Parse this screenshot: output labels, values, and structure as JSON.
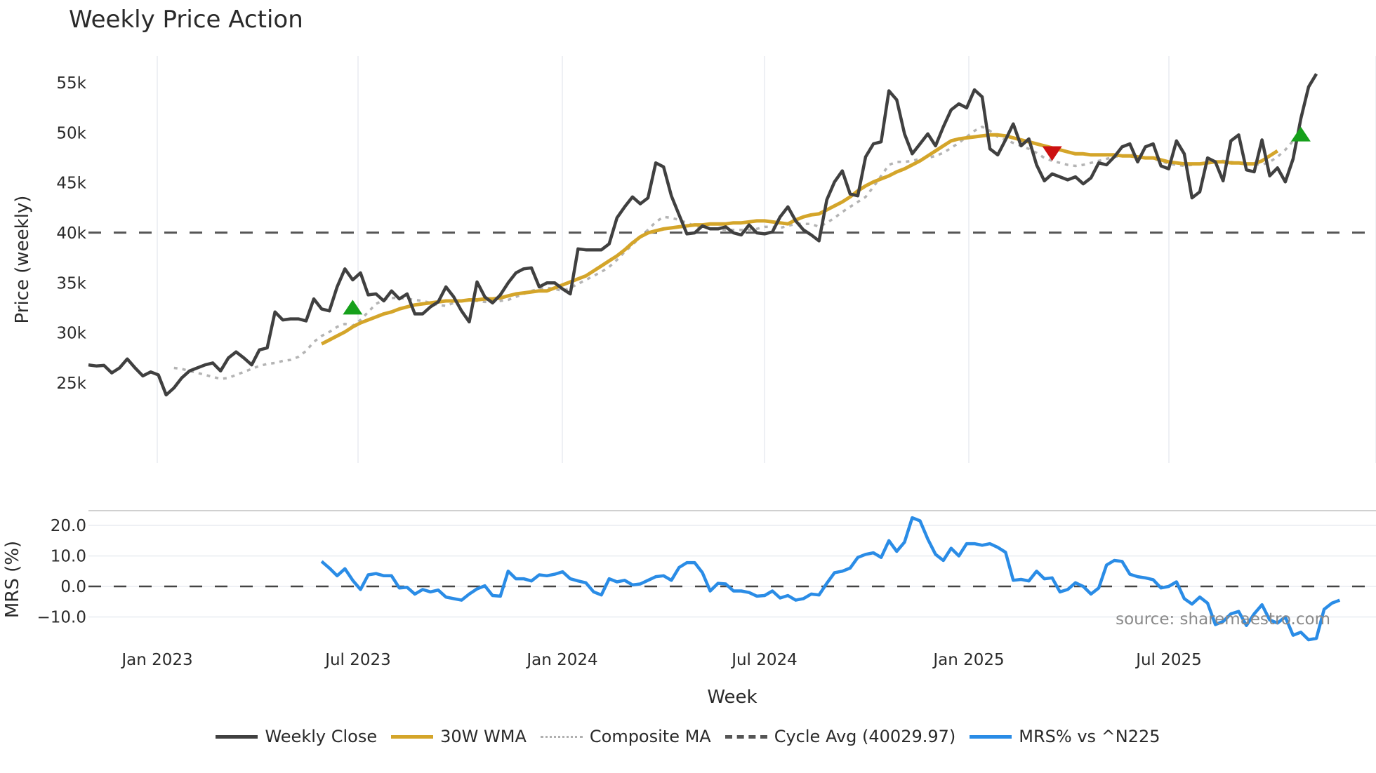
{
  "title": "Weekly Price Action",
  "source_text": "source: sharemaestro.com",
  "legend": [
    {
      "label": "Weekly Close",
      "color": "#404040",
      "style": "solid"
    },
    {
      "label": "30W WMA",
      "color": "#d4a52a",
      "style": "solid"
    },
    {
      "label": "Composite MA",
      "color": "#b0b0b0",
      "style": "dotted"
    },
    {
      "label": "Cycle Avg (40029.97)",
      "color": "#555555",
      "style": "dashed"
    },
    {
      "label": "MRS% vs ^N225",
      "color": "#2a8ce6",
      "style": "solid"
    }
  ],
  "chart_data": [
    {
      "type": "line",
      "title": "Weekly Price Action",
      "xlabel": "Week",
      "ylabel": "Price (weekly)",
      "ylim": [
        22000,
        58500
      ],
      "y_ticks": [
        "25k",
        "30k",
        "35k",
        "40k",
        "45k",
        "50k",
        "55k"
      ],
      "x_ticks": [
        "Jan 2023",
        "Jul 2023",
        "Jan 2024",
        "Jul 2024",
        "Jan 2025",
        "Jul 2025"
      ],
      "grid": true,
      "start_week": "2022-11-07",
      "hline": {
        "label": "Cycle Avg (40029.97)",
        "value": 40029.97
      },
      "series": [
        {
          "name": "Weekly Close",
          "values": [
            26800,
            26700,
            26750,
            26000,
            26500,
            27400,
            26500,
            25700,
            26100,
            25800,
            23800,
            24500,
            25500,
            26200,
            26500,
            26800,
            27000,
            26200,
            27500,
            28100,
            27500,
            26800,
            28300,
            28500,
            32100,
            31300,
            31400,
            31400,
            31200,
            33400,
            32400,
            32200,
            34600,
            36400,
            35300,
            36000,
            33800,
            33900,
            33200,
            34200,
            33400,
            33900,
            31900,
            31900,
            32600,
            33100,
            34600,
            33600,
            32200,
            31100,
            35100,
            33600,
            33000,
            33800,
            35000,
            36000,
            36400,
            36500,
            34600,
            35000,
            35000,
            34400,
            33900,
            38400,
            38300,
            38300,
            38300,
            38900,
            41500,
            42600,
            43600,
            42900,
            43500,
            47000,
            46600,
            43700,
            41800,
            39900,
            40000,
            40700,
            40400,
            40400,
            40600,
            40000,
            39800,
            40800,
            40000,
            39900,
            40100,
            41600,
            42600,
            41200,
            40300,
            39800,
            39200,
            43300,
            45100,
            46200,
            43900,
            43700,
            47600,
            48900,
            49100,
            54200,
            53300,
            49900,
            47900,
            48900,
            49900,
            48700,
            50600,
            52300,
            52900,
            52500,
            54300,
            53600,
            48400,
            47800,
            49300,
            50900,
            48700,
            49400,
            46800,
            45200,
            45900,
            45600,
            45300,
            45600,
            44900,
            45500,
            47000,
            46800,
            47600,
            48600,
            48900,
            47100,
            48600,
            48900,
            46700,
            46400,
            49200,
            47900,
            43500,
            44100,
            47500,
            47100,
            45200,
            49200,
            49800,
            46300,
            46100,
            49300,
            45700,
            46500,
            45100,
            47400,
            51400,
            54600,
            55900
          ]
        },
        {
          "name": "30W WMA",
          "start_index": 30,
          "values": [
            28900,
            29300,
            29700,
            30100,
            30600,
            31000,
            31300,
            31600,
            31900,
            32100,
            32400,
            32600,
            32800,
            32900,
            33000,
            33100,
            33200,
            33200,
            33200,
            33300,
            33300,
            33400,
            33400,
            33500,
            33700,
            33900,
            34000,
            34100,
            34200,
            34200,
            34500,
            34800,
            35100,
            35400,
            35700,
            36200,
            36700,
            37200,
            37700,
            38300,
            39000,
            39600,
            40000,
            40200,
            40400,
            40500,
            40600,
            40700,
            40800,
            40800,
            40900,
            40900,
            40900,
            41000,
            41000,
            41100,
            41200,
            41200,
            41100,
            41000,
            40900,
            41300,
            41600,
            41800,
            41900,
            42300,
            42700,
            43100,
            43600,
            44200,
            44700,
            45100,
            45400,
            45700,
            46100,
            46400,
            46800,
            47200,
            47700,
            48200,
            48700,
            49200,
            49400,
            49500,
            49600,
            49700,
            49800,
            49800,
            49700,
            49500,
            49300,
            49100,
            48900,
            48700,
            48500,
            48300,
            48100,
            47900,
            47900,
            47800,
            47800,
            47800,
            47800,
            47700,
            47700,
            47600,
            47500,
            47500,
            47300,
            47100,
            47000,
            46900,
            46900,
            46900,
            47000,
            47100,
            47100,
            47000,
            47000,
            46900,
            46900,
            47200,
            47700,
            48200
          ]
        },
        {
          "name": "Composite MA",
          "start_index": 11,
          "values": [
            26500,
            26400,
            26200,
            26000,
            25800,
            25600,
            25400,
            25500,
            25800,
            26100,
            26400,
            26700,
            26900,
            27000,
            27200,
            27300,
            27600,
            28200,
            29100,
            29700,
            30100,
            30600,
            30900,
            30700,
            31300,
            32100,
            32900,
            33300,
            33500,
            33500,
            33400,
            33300,
            33200,
            33000,
            32800,
            32700,
            33000,
            33200,
            33300,
            33200,
            33100,
            33100,
            33200,
            33300,
            33600,
            33900,
            34200,
            34400,
            34500,
            34400,
            34200,
            34500,
            34900,
            35300,
            35700,
            36100,
            36600,
            37300,
            38100,
            38800,
            39600,
            40300,
            41100,
            41600,
            41500,
            41300,
            41000,
            40700,
            40500,
            40500,
            40400,
            40300,
            40300,
            40300,
            40300,
            40400,
            40600,
            40600,
            40500,
            40700,
            40900,
            40900,
            40900,
            40600,
            41000,
            41500,
            42100,
            42600,
            43100,
            43600,
            44600,
            45700,
            46800,
            47100,
            47100,
            47200,
            47400,
            47500,
            47700,
            48000,
            48500,
            49000,
            49600,
            50200,
            50600,
            50200,
            49600,
            49300,
            49000,
            48700,
            48400,
            48000,
            47500,
            47200,
            47000,
            46800,
            46700,
            46800,
            47000,
            47200,
            47400,
            47600,
            47700,
            47800,
            47700,
            47600,
            47400,
            47200,
            46900,
            46800,
            46700,
            46800,
            46900,
            47000,
            47100,
            47200,
            47100,
            47000,
            46900,
            46900,
            46800,
            47100,
            47600,
            48300,
            49200
          ]
        },
        {
          "name": "MRS% vs ^N225",
          "start_index": 30,
          "values": [
            8.2,
            6.0,
            3.5,
            5.8,
            2.0,
            -1.0,
            3.8,
            4.2,
            3.5,
            3.5,
            -0.5,
            -0.3,
            -2.5,
            -1.0,
            -1.8,
            -1.2,
            -3.5,
            -4.0,
            -4.5,
            -2.5,
            -0.8,
            0.2,
            -3.0,
            -3.2,
            5.0,
            2.5,
            2.5,
            1.8,
            3.8,
            3.5,
            4.0,
            4.8,
            2.5,
            1.8,
            1.2,
            -1.8,
            -2.8,
            2.5,
            1.5,
            2.0,
            0.5,
            0.8,
            2.0,
            3.2,
            3.5,
            2.0,
            6.2,
            7.8,
            7.8,
            4.5,
            -1.5,
            1.0,
            0.8,
            -1.5,
            -1.5,
            -2.0,
            -3.2,
            -3.0,
            -1.5,
            -3.8,
            -3.0,
            -4.5,
            -4.0,
            -2.5,
            -2.8,
            1.0,
            4.5,
            5.0,
            6.0,
            9.5,
            10.5,
            11.0,
            9.5,
            15.0,
            11.5,
            14.5,
            22.5,
            21.5,
            15.5,
            10.5,
            8.5,
            12.5,
            10.0,
            14.0,
            14.0,
            13.5,
            14.0,
            12.8,
            11.2,
            2.0,
            2.3,
            1.8,
            5.0,
            2.5,
            2.8,
            -1.8,
            -1.0,
            1.2,
            0.0,
            -2.5,
            -0.5,
            7.0,
            8.5,
            8.2,
            4.0,
            3.2,
            2.8,
            2.2,
            -0.5,
            0.0,
            1.5,
            -4.0,
            -5.8,
            -3.5,
            -5.5,
            -12.5,
            -11.5,
            -9.0,
            -8.2,
            -12.8,
            -9.0,
            -6.0,
            -11.0,
            -12.0,
            -10.0,
            -16.0,
            -15.0,
            -17.5,
            -17.0,
            -7.5,
            -5.5,
            -4.5
          ]
        }
      ],
      "markers": [
        {
          "type": "buy",
          "shape": "triangle-up",
          "color": "#16a01b",
          "index": 34,
          "value": 32400
        },
        {
          "type": "sell",
          "shape": "triangle-down",
          "color": "#cc1111",
          "index": 124,
          "value": 48100
        },
        {
          "type": "buy",
          "shape": "triangle-up",
          "color": "#16a01b",
          "index": 156,
          "value": 49700
        }
      ],
      "mrs_panel": {
        "ylabel": "MRS (%)",
        "y_ticks": [
          "20.0",
          "10.0",
          "0.0",
          "−10.0"
        ],
        "hline": 0
      }
    }
  ]
}
